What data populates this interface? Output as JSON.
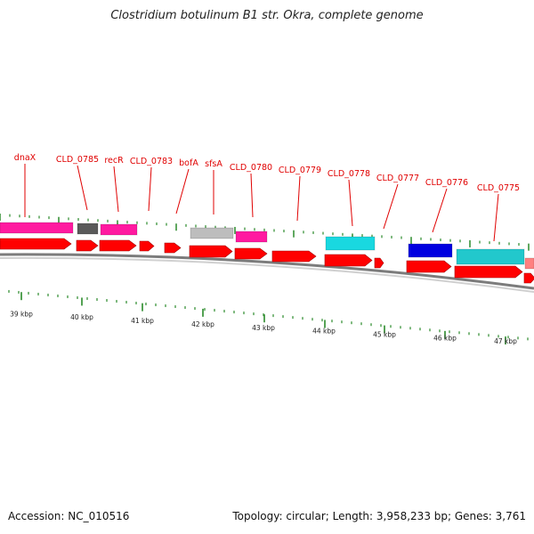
{
  "title": "Clostridium botulinum B1 str. Okra, complete genome",
  "footer": {
    "accession": "Accession: NC_010516",
    "summary": "Topology: circular; Length: 3,958,233 bp; Genes: 3,761"
  },
  "colors": {
    "label": "#e00000",
    "tick": "#2a8a2a",
    "backbone": "#8c8c8c",
    "cds_forward": "#ff0000",
    "pink": "#ff1aa0",
    "gray_dark": "#5a5a5a",
    "gray_light": "#bdbdbd",
    "cyan": "#19d8e0",
    "blue": "#0000e0",
    "teal": "#22c8cc"
  },
  "gene_labels": [
    "dnaX",
    "CLD_0785",
    "recR",
    "CLD_0783",
    "bofA",
    "sfsA",
    "CLD_0780",
    "CLD_0779",
    "CLD_0778",
    "CLD_0777",
    "CLD_0776",
    "CLD_0775"
  ],
  "kbp_labels": [
    "39 kbp",
    "40 kbp",
    "41 kbp",
    "42 kbp",
    "43 kbp",
    "44 kbp",
    "45 kbp",
    "46 kbp",
    "47 kbp"
  ],
  "legend_icons": [
    "arrow-feature-icon"
  ]
}
